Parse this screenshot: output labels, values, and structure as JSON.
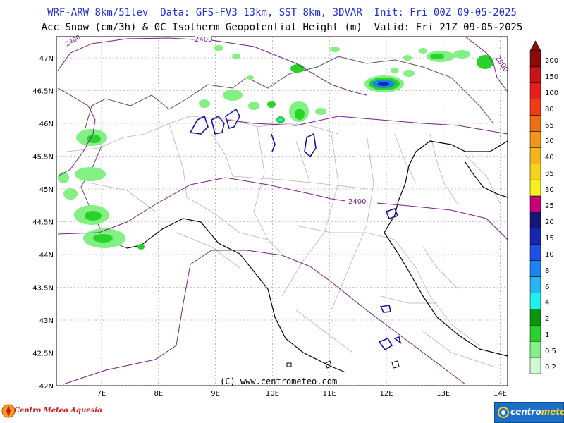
{
  "header": {
    "title_line1": "WRF-ARW 8km/51lev  Data: GFS-FV3 13km, SST 8km, 3DVAR  Init: Fri 00Z 09-05-2025",
    "title_line2": "Acc Snow (cm/3h) & 0C Isotherm Geopotential Height (m)  Valid: Fri 21Z 09-05-2025"
  },
  "map": {
    "lat_labels": [
      "47N",
      "46.5N",
      "46N",
      "45.5N",
      "45N",
      "44.5N",
      "44N",
      "43.5N",
      "43N",
      "42.5N",
      "42N"
    ],
    "lon_labels": [
      "7E",
      "8E",
      "9E",
      "10E",
      "11E",
      "12E",
      "13E",
      "14E"
    ],
    "contour_labels": [
      "2400",
      "2400",
      "2000",
      "2400"
    ],
    "copyright": "(C) www.centrometeo.com",
    "colors": {
      "isotherm": "#7a1e8c",
      "coast": "#000000",
      "lakes": "#1414a0",
      "borders": "#b4b4b4",
      "grid": "#8c8c8c"
    }
  },
  "legend": {
    "values": [
      "200",
      "150",
      "100",
      "80",
      "65",
      "50",
      "40",
      "35",
      "30",
      "25",
      "20",
      "15",
      "10",
      "8",
      "6",
      "4",
      "2",
      "1",
      "0.5",
      "0.2"
    ],
    "colors": [
      "#8b0a0a",
      "#c81414",
      "#e61e1e",
      "#f03c14",
      "#f06e14",
      "#f0961e",
      "#f5b41e",
      "#f5d21e",
      "#f5f01e",
      "#c80078",
      "#14147d",
      "#1428b4",
      "#1e50e6",
      "#1e82f0",
      "#28b4f0",
      "#1ef0f0",
      "#0a960a",
      "#28d228",
      "#82f082",
      "#d2fad2"
    ]
  },
  "footer": {
    "left_logo": "Centro Meteo Aquesio",
    "right_logo_a": "centro",
    "right_logo_b": "meteo"
  }
}
